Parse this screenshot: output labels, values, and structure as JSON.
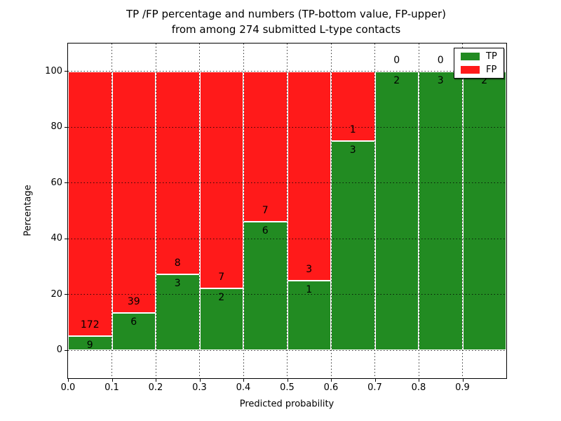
{
  "figure": {
    "title_line1": "TP /FP percentage and numbers (TP-bottom value, FP-upper)",
    "title_line2": "from among 274 submitted L-type contacts"
  },
  "chart_data": {
    "type": "bar",
    "stacked": true,
    "normalized_to_percent": true,
    "title": "TP /FP percentage and numbers (TP-bottom value, FP-upper) from among 274 submitted L-type contacts",
    "xlabel": "Predicted probability",
    "ylabel": "Percentage",
    "total_contacts": 274,
    "bin_width": 0.1,
    "categories": [
      "0.0",
      "0.1",
      "0.2",
      "0.3",
      "0.4",
      "0.5",
      "0.6",
      "0.7",
      "0.8",
      "0.9"
    ],
    "series": [
      {
        "name": "TP",
        "color": "#228B22",
        "values": [
          9,
          6,
          3,
          2,
          6,
          1,
          3,
          2,
          3,
          2
        ]
      },
      {
        "name": "FP",
        "color": "#FF1A1A",
        "values": [
          172,
          39,
          8,
          7,
          7,
          3,
          1,
          0,
          0,
          0
        ]
      }
    ],
    "tp_percent": [
      4.97,
      13.33,
      27.27,
      22.22,
      46.15,
      25.0,
      75.0,
      100.0,
      100.0,
      100.0
    ],
    "ylim": [
      -10,
      110
    ],
    "yticks": [
      0,
      20,
      40,
      60,
      80,
      100
    ],
    "xtick_labels": [
      "0.0",
      "0.1",
      "0.2",
      "0.3",
      "0.4",
      "0.5",
      "0.6",
      "0.7",
      "0.8",
      "0.9"
    ],
    "grid": "dotted",
    "legend": {
      "position": "upper right",
      "entries": [
        {
          "label": "TP",
          "color": "#228B22"
        },
        {
          "label": "FP",
          "color": "#FF1A1A"
        }
      ]
    }
  }
}
